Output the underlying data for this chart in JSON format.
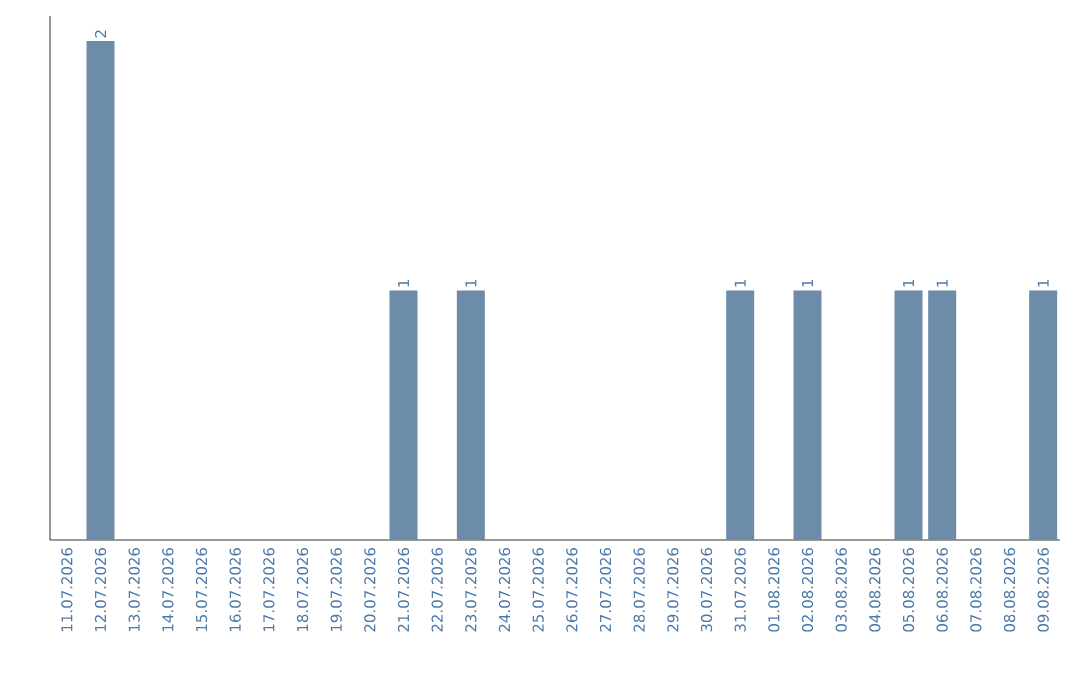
{
  "chart_data": {
    "type": "bar",
    "categories": [
      "11.07.2026",
      "12.07.2026",
      "13.07.2026",
      "14.07.2026",
      "15.07.2026",
      "16.07.2026",
      "17.07.2026",
      "18.07.2026",
      "19.07.2026",
      "20.07.2026",
      "21.07.2026",
      "22.07.2026",
      "23.07.2026",
      "24.07.2026",
      "25.07.2026",
      "26.07.2026",
      "27.07.2026",
      "28.07.2026",
      "29.07.2026",
      "30.07.2026",
      "31.07.2026",
      "01.08.2026",
      "02.08.2026",
      "03.08.2026",
      "04.08.2026",
      "05.08.2026",
      "06.08.2026",
      "07.08.2026",
      "08.08.2026",
      "09.08.2026"
    ],
    "values": [
      0,
      2,
      0,
      0,
      0,
      0,
      0,
      0,
      0,
      0,
      1,
      0,
      1,
      0,
      0,
      0,
      0,
      0,
      0,
      0,
      1,
      0,
      1,
      0,
      0,
      1,
      1,
      0,
      0,
      1
    ],
    "value_labels": [
      null,
      "2",
      null,
      null,
      null,
      null,
      null,
      null,
      null,
      null,
      "1",
      null,
      "1",
      null,
      null,
      null,
      null,
      null,
      null,
      null,
      "1",
      null,
      "1",
      null,
      null,
      "1",
      "1",
      null,
      null,
      "1"
    ],
    "color": "#6d8caa"
  }
}
